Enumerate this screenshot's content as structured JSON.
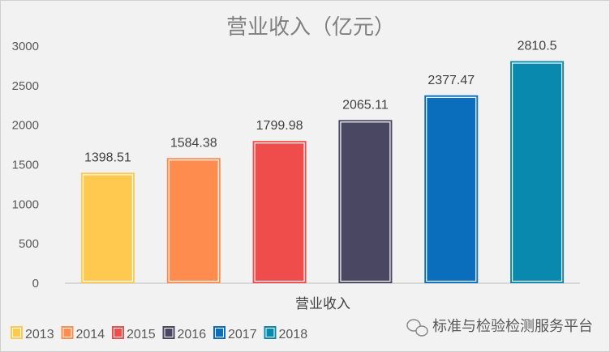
{
  "chart_data": {
    "type": "bar",
    "title": "营业收入（亿元）",
    "xlabel": "营业收入",
    "ylabel": "",
    "ylim": [
      0,
      3000
    ],
    "yticks": [
      0,
      500,
      1000,
      1500,
      2000,
      2500,
      3000
    ],
    "grid": false,
    "legend_position": "bottom-left",
    "categories": [
      "营业收入"
    ],
    "series": [
      {
        "name": "2013",
        "values": [
          1398.51
        ],
        "label": "1398.51",
        "color": "#FFC94F"
      },
      {
        "name": "2014",
        "values": [
          1584.38
        ],
        "label": "1584.38",
        "color": "#FF8C4F"
      },
      {
        "name": "2015",
        "values": [
          1799.98
        ],
        "label": "1799.98",
        "color": "#EE4D4B"
      },
      {
        "name": "2016",
        "values": [
          2065.11
        ],
        "label": "2065.11",
        "color": "#4A4763"
      },
      {
        "name": "2017",
        "values": [
          2377.47
        ],
        "label": "2377.47",
        "color": "#0A6EBD"
      },
      {
        "name": "2018",
        "values": [
          2810.5
        ],
        "label": "2810.5",
        "color": "#0A89AE"
      }
    ]
  },
  "watermark": "标准与检验检测服务平台"
}
